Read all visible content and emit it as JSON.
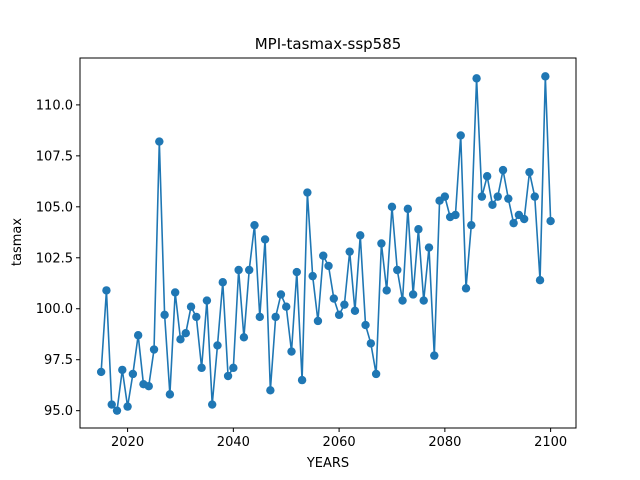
{
  "chart_data": {
    "type": "line",
    "title": "MPI-tasmax-ssp585",
    "xlabel": "YEARS",
    "ylabel": "tasmax",
    "xlim": [
      2011,
      2104.8
    ],
    "ylim": [
      94.15,
      112.3
    ],
    "xticks": [
      2020,
      2040,
      2060,
      2080,
      2100
    ],
    "xtick_labels": [
      "2020",
      "2040",
      "2060",
      "2080",
      "2100"
    ],
    "yticks": [
      95.0,
      97.5,
      100.0,
      102.5,
      105.0,
      107.5,
      110.0
    ],
    "ytick_labels": [
      "95.0",
      "97.5",
      "100.0",
      "102.5",
      "105.0",
      "107.5",
      "110.0"
    ],
    "grid": false,
    "markers": true,
    "color": "#1f77b4",
    "x": [
      2015,
      2016,
      2017,
      2018,
      2019,
      2020,
      2021,
      2022,
      2023,
      2024,
      2025,
      2026,
      2027,
      2028,
      2029,
      2030,
      2031,
      2032,
      2033,
      2034,
      2035,
      2036,
      2037,
      2038,
      2039,
      2040,
      2041,
      2042,
      2043,
      2044,
      2045,
      2046,
      2047,
      2048,
      2049,
      2050,
      2051,
      2052,
      2053,
      2054,
      2055,
      2056,
      2057,
      2058,
      2059,
      2060,
      2061,
      2062,
      2063,
      2064,
      2065,
      2066,
      2067,
      2068,
      2069,
      2070,
      2071,
      2072,
      2073,
      2074,
      2075,
      2076,
      2077,
      2078,
      2079,
      2080,
      2081,
      2082,
      2083,
      2084,
      2085,
      2086,
      2087,
      2088,
      2089,
      2090,
      2091,
      2092,
      2093,
      2094,
      2095,
      2096,
      2097,
      2098,
      2099,
      2100
    ],
    "y": [
      96.9,
      100.9,
      95.3,
      95.0,
      97.0,
      95.2,
      96.8,
      98.7,
      96.3,
      96.2,
      98.0,
      108.2,
      99.7,
      95.8,
      100.8,
      98.5,
      98.8,
      100.1,
      99.6,
      97.1,
      100.4,
      95.3,
      98.2,
      101.3,
      96.7,
      97.1,
      101.9,
      98.6,
      101.9,
      104.1,
      99.6,
      103.4,
      96.0,
      99.6,
      100.7,
      100.1,
      97.9,
      101.8,
      96.5,
      105.7,
      101.6,
      99.4,
      102.6,
      102.1,
      100.5,
      99.7,
      100.2,
      102.8,
      99.9,
      103.6,
      99.2,
      98.3,
      96.8,
      103.2,
      100.9,
      105.0,
      101.9,
      100.4,
      104.9,
      100.7,
      103.9,
      100.4,
      103.0,
      97.7,
      105.3,
      105.5,
      104.5,
      104.6,
      108.5,
      101.0,
      104.1,
      111.3,
      105.5,
      106.5,
      105.1,
      105.5,
      106.8,
      105.4,
      104.2,
      104.6,
      104.4,
      106.7,
      105.5,
      101.4,
      111.4,
      104.3
    ]
  }
}
